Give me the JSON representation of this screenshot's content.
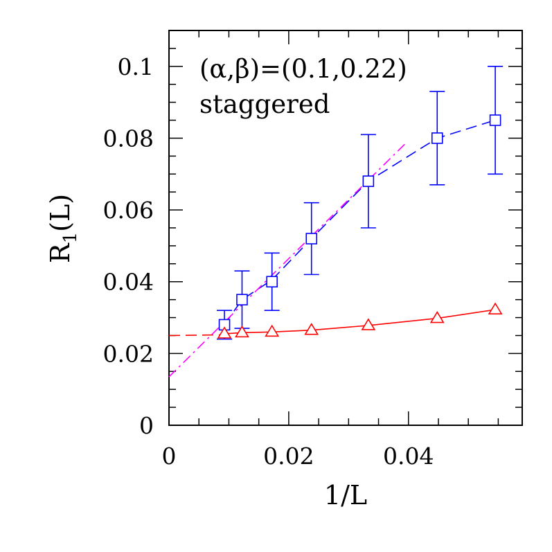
{
  "chart_data": {
    "type": "scatter",
    "title": "",
    "xlabel": "1/L",
    "ylabel_main": "R",
    "ylabel_sub": "1",
    "ylabel_tail": "(L)",
    "xlim": [
      0,
      0.059
    ],
    "ylim": [
      0,
      0.11
    ],
    "x_major_ticks": [
      0,
      0.02,
      0.04
    ],
    "x_tick_labels": [
      "0",
      "0.02",
      "0.04"
    ],
    "x_minor_step": 0.005,
    "y_major_ticks": [
      0,
      0.02,
      0.04,
      0.06,
      0.08,
      0.1
    ],
    "y_tick_labels": [
      "0",
      "0.02",
      "0.04",
      "0.06",
      "0.08",
      "0.1"
    ],
    "y_minor_step": 0.005,
    "grid": false,
    "annotations": [
      "(α,β)=(0.1,0.22)",
      "staggered"
    ],
    "series": [
      {
        "marker": "square",
        "color": "#0000ff",
        "points": [
          {
            "x": 0.00926,
            "y": 0.028,
            "yerr": 0.004
          },
          {
            "x": 0.0122,
            "y": 0.035,
            "yerr": 0.008
          },
          {
            "x": 0.0172,
            "y": 0.04,
            "yerr": 0.008
          },
          {
            "x": 0.0238,
            "y": 0.052,
            "yerr": 0.01
          },
          {
            "x": 0.0333,
            "y": 0.068,
            "yerr": 0.013
          },
          {
            "x": 0.0448,
            "y": 0.08,
            "yerr": 0.013
          },
          {
            "x": 0.0545,
            "y": 0.085,
            "yerr": 0.015
          }
        ]
      },
      {
        "marker": "triangle",
        "color": "#ff0000",
        "points": [
          {
            "x": 0.00926,
            "y": 0.0255
          },
          {
            "x": 0.0122,
            "y": 0.0258
          },
          {
            "x": 0.0172,
            "y": 0.026
          },
          {
            "x": 0.0238,
            "y": 0.0265
          },
          {
            "x": 0.0333,
            "y": 0.0278
          },
          {
            "x": 0.0448,
            "y": 0.0298
          },
          {
            "x": 0.0545,
            "y": 0.0322
          }
        ]
      }
    ],
    "curves": [
      {
        "style": "dashed",
        "color": "#0000ff",
        "points": [
          [
            0.00926,
            0.028
          ],
          [
            0.0122,
            0.035
          ],
          [
            0.0172,
            0.0405
          ],
          [
            0.0238,
            0.052
          ],
          [
            0.0333,
            0.068
          ],
          [
            0.0448,
            0.08
          ],
          [
            0.0545,
            0.085
          ]
        ]
      },
      {
        "style": "solid",
        "color": "#ff0000",
        "points": [
          [
            0.00926,
            0.0255
          ],
          [
            0.0122,
            0.0258
          ],
          [
            0.0172,
            0.026
          ],
          [
            0.0238,
            0.0265
          ],
          [
            0.0333,
            0.0278
          ],
          [
            0.0448,
            0.0298
          ],
          [
            0.0545,
            0.0322
          ]
        ]
      },
      {
        "style": "dashed",
        "color": "#ff0000",
        "points": [
          [
            0,
            0.025
          ],
          [
            0.00926,
            0.0252
          ]
        ]
      },
      {
        "style": "dashdot",
        "color": "#ff00ff",
        "points": [
          [
            0,
            0.0135
          ],
          [
            0.0395,
            0.0785
          ]
        ]
      }
    ]
  }
}
